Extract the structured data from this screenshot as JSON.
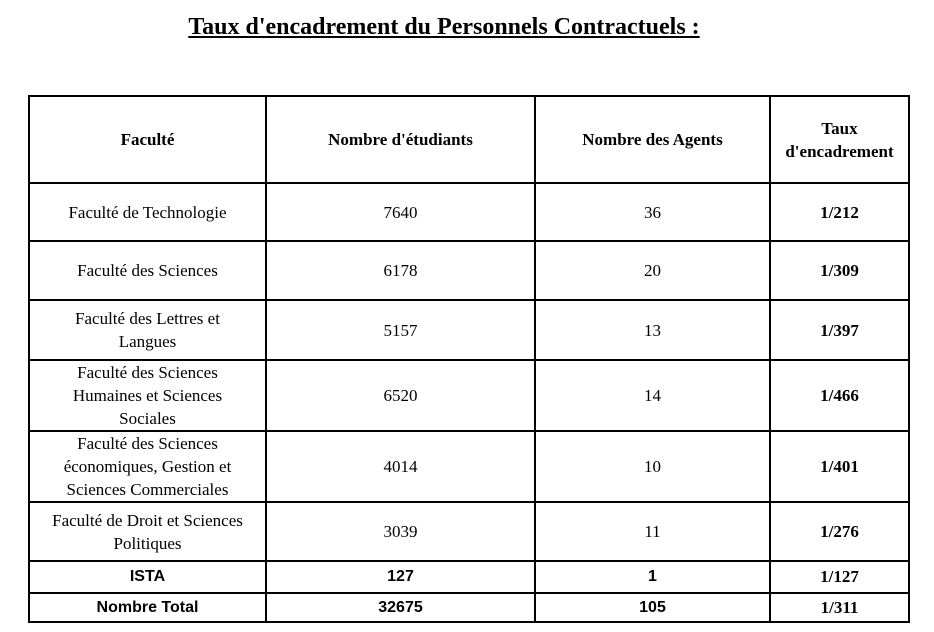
{
  "title": "Taux d'encadrement du Personnels Contractuels :",
  "table": {
    "headers": [
      "Faculté",
      "Nombre d'étudiants",
      "Nombre des Agents",
      "Taux\nd'encadrement"
    ],
    "rows": [
      {
        "faculte": "Faculté de Technologie",
        "etudiants": "7640",
        "agents": "36",
        "taux": "1/212"
      },
      {
        "faculte": "Faculté des Sciences",
        "etudiants": "6178",
        "agents": "20",
        "taux": "1/309"
      },
      {
        "faculte": "Faculté des Lettres et\nLangues",
        "etudiants": "5157",
        "agents": "13",
        "taux": "1/397"
      },
      {
        "faculte": "Faculté des Sciences\nHumaines et Sciences\nSociales",
        "etudiants": "6520",
        "agents": "14",
        "taux": "1/466"
      },
      {
        "faculte": "Faculté des Sciences\néconomiques, Gestion et\nSciences Commerciales",
        "etudiants": "4014",
        "agents": "10",
        "taux": "1/401"
      },
      {
        "faculte": "Faculté de Droit et Sciences\nPolitiques",
        "etudiants": "3039",
        "agents": "11",
        "taux": "1/276"
      },
      {
        "faculte": "ISTA",
        "etudiants": "127",
        "agents": "1",
        "taux": "1/127"
      },
      {
        "faculte": "Nombre Total",
        "etudiants": "32675",
        "agents": "105",
        "taux": "1/311"
      }
    ]
  }
}
